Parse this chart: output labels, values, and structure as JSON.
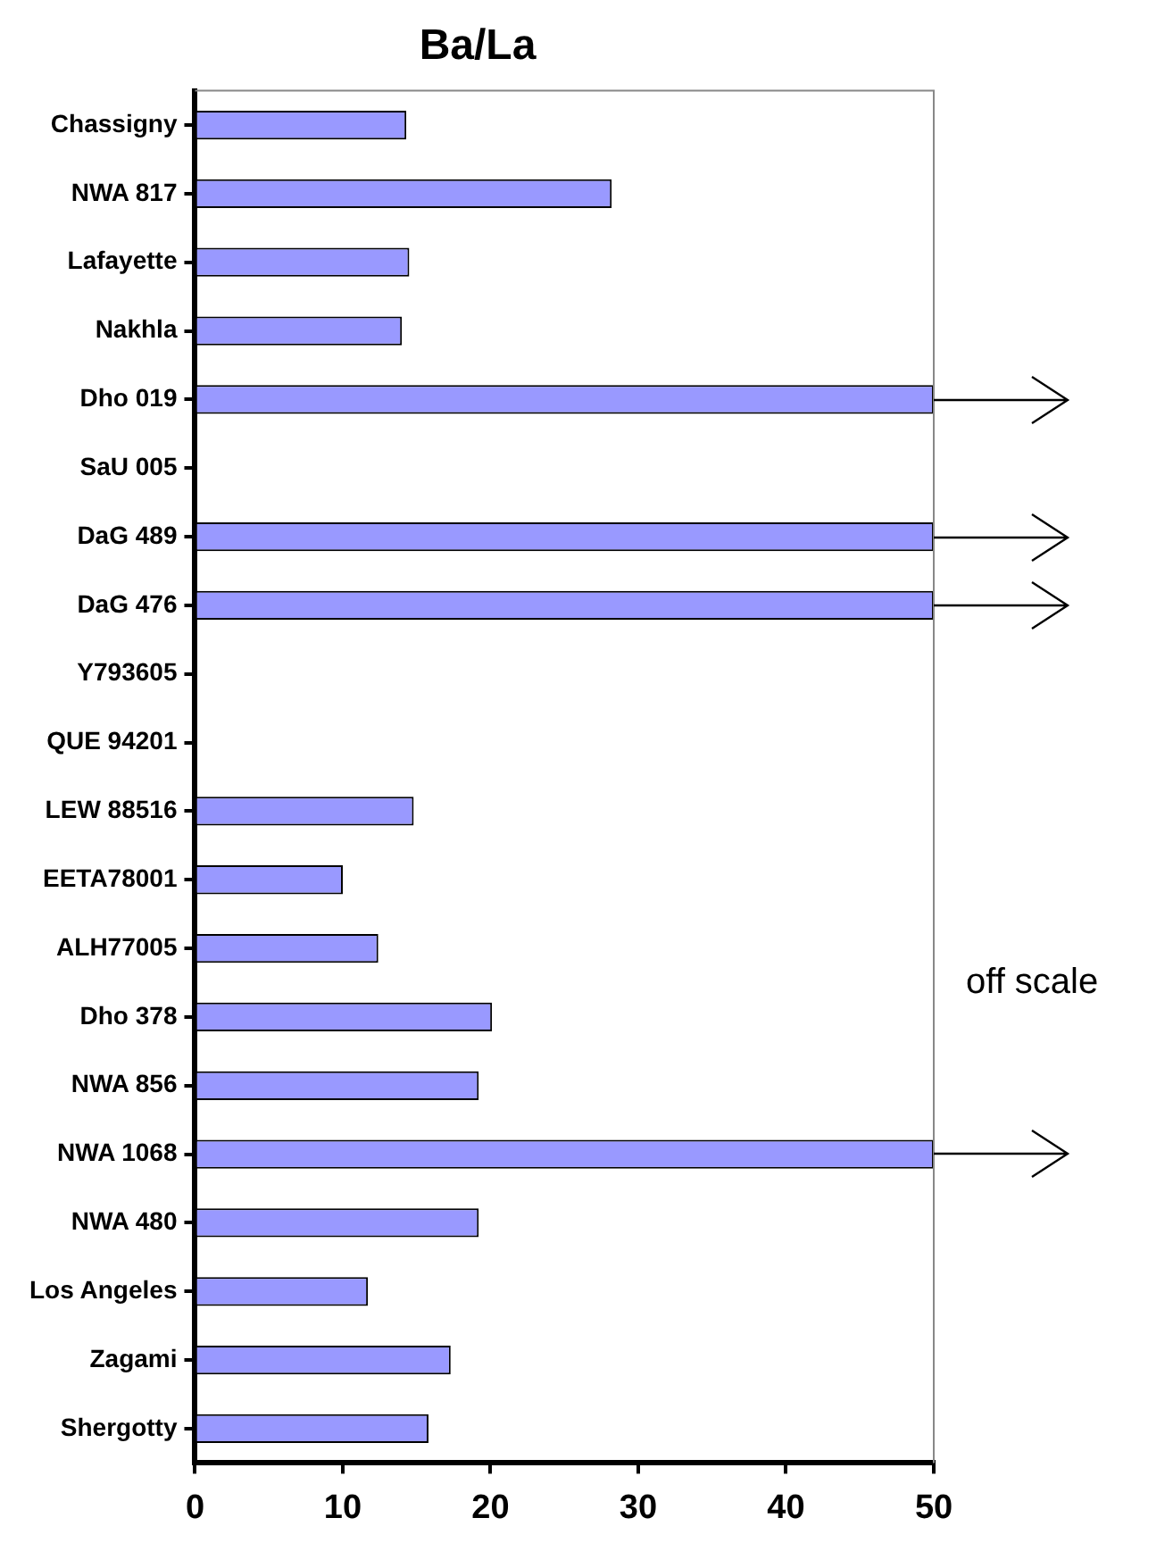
{
  "chart_data": {
    "type": "bar",
    "orientation": "horizontal",
    "title": "Ba/La",
    "categories": [
      "Chassigny",
      "NWA 817",
      "Lafayette",
      "Nakhla",
      "Dho 019",
      "SaU 005",
      "DaG 489",
      "DaG 476",
      "Y793605",
      "QUE 94201",
      "LEW 88516",
      "EETA78001",
      "ALH77005",
      "Dho 378",
      "NWA 856",
      "NWA 1068",
      "NWA 480",
      "Los Angeles",
      "Zagami",
      "Shergotty"
    ],
    "values": [
      14.3,
      28.2,
      14.5,
      14.0,
      50,
      null,
      50,
      50,
      null,
      null,
      14.8,
      10.0,
      12.4,
      20.1,
      19.2,
      50,
      19.2,
      11.7,
      17.3,
      15.8
    ],
    "color": "#9999ff",
    "xlim": [
      0,
      50
    ],
    "xticks": [
      0,
      10,
      20,
      30,
      40,
      50
    ],
    "grid": false,
    "legend": false,
    "annotations": [
      "off scale"
    ]
  }
}
